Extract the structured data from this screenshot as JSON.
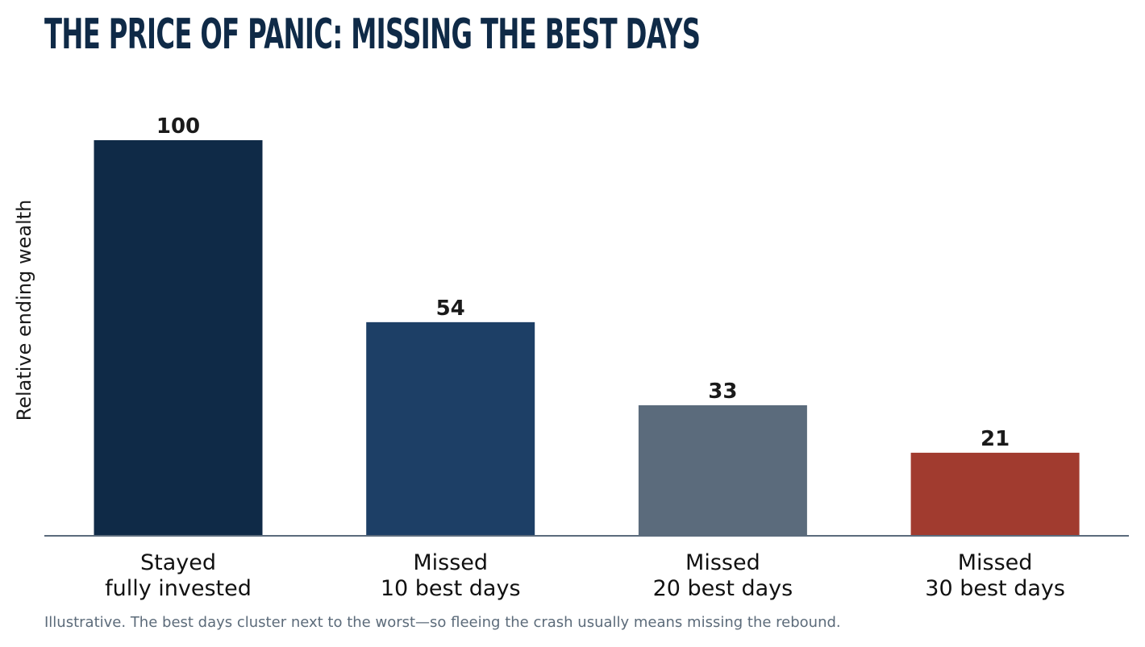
{
  "chart_data": {
    "type": "bar",
    "title": "THE PRICE OF PANIC: MISSING THE BEST DAYS",
    "ylabel": "Relative ending wealth",
    "xlabel": "",
    "categories": [
      [
        "Stayed",
        "fully invested"
      ],
      [
        "Missed",
        "10 best days"
      ],
      [
        "Missed",
        "20 best days"
      ],
      [
        "Missed",
        "30 best days"
      ]
    ],
    "values": [
      100,
      54,
      33,
      21
    ],
    "data_labels": [
      "100",
      "54",
      "33",
      "21"
    ],
    "colors": [
      "#0f2a47",
      "#1d3f66",
      "#5b6b7c",
      "#a13b2f"
    ],
    "ylim": [
      0,
      100
    ],
    "grid": false,
    "footnote": "Illustrative. The best days cluster next to the worst—so fleeing the crash usually means missing the rebound."
  }
}
